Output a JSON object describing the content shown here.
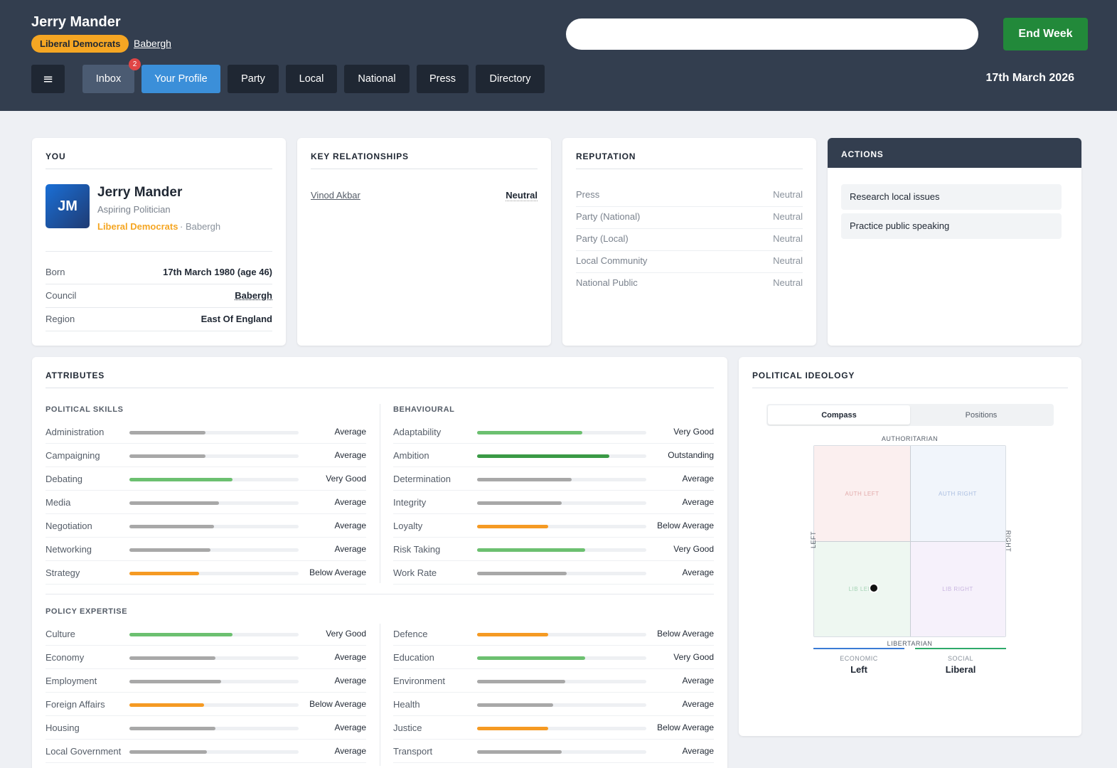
{
  "header": {
    "user_name": "Jerry Mander",
    "party": "Liberal Democrats",
    "council": "Babergh",
    "search_placeholder": "",
    "end_week_label": "End Week",
    "menu_glyph": "≡",
    "date": "17th March 2026",
    "nav": {
      "inbox": "Inbox",
      "inbox_count": "2",
      "profile": "Your Profile",
      "party": "Party",
      "local": "Local",
      "national": "National",
      "press": "Press",
      "directory": "Directory"
    }
  },
  "you": {
    "title": "YOU",
    "initials": "JM",
    "name": "Jerry Mander",
    "role": "Aspiring Politician",
    "party": "Liberal Democrats",
    "council_tag": "· Babergh",
    "rows": [
      {
        "label": "Born",
        "value": "17th March 1980 (age 46)"
      },
      {
        "label": "Council",
        "value": "Babergh"
      },
      {
        "label": "Region",
        "value": "East Of England"
      }
    ]
  },
  "relationships": {
    "title": "KEY RELATIONSHIPS",
    "items": [
      {
        "name": "Vinod Akbar",
        "status": "Neutral"
      }
    ]
  },
  "reputation": {
    "title": "REPUTATION",
    "rows": [
      {
        "label": "Press",
        "value": "Neutral"
      },
      {
        "label": "Party (National)",
        "value": "Neutral"
      },
      {
        "label": "Party (Local)",
        "value": "Neutral"
      },
      {
        "label": "Local Community",
        "value": "Neutral"
      },
      {
        "label": "National Public",
        "value": "Neutral"
      }
    ]
  },
  "actions": {
    "title": "ACTIONS",
    "items": [
      "Research local issues",
      "Practice public speaking"
    ]
  },
  "attributes": {
    "title": "ATTRIBUTES",
    "political_skills_label": "POLITICAL SKILLS",
    "behavioural_label": "BEHAVIOURAL",
    "policy_label": "POLICY EXPERTISE",
    "colors": {
      "Average": "#a8a8a8",
      "Very Good": "#6cc070",
      "Outstanding": "#3a9a45",
      "Below Average": "#f59a23"
    },
    "political_skills": [
      {
        "name": "Administration",
        "rating": "Average",
        "level": 0.45
      },
      {
        "name": "Campaigning",
        "rating": "Average",
        "level": 0.45
      },
      {
        "name": "Debating",
        "rating": "Very Good",
        "level": 0.61
      },
      {
        "name": "Media",
        "rating": "Average",
        "level": 0.53
      },
      {
        "name": "Negotiation",
        "rating": "Average",
        "level": 0.5
      },
      {
        "name": "Networking",
        "rating": "Average",
        "level": 0.48
      },
      {
        "name": "Strategy",
        "rating": "Below Average",
        "level": 0.41
      }
    ],
    "behavioural": [
      {
        "name": "Adaptability",
        "rating": "Very Good",
        "level": 0.62
      },
      {
        "name": "Ambition",
        "rating": "Outstanding",
        "level": 0.78
      },
      {
        "name": "Determination",
        "rating": "Average",
        "level": 0.56
      },
      {
        "name": "Integrity",
        "rating": "Average",
        "level": 0.5
      },
      {
        "name": "Loyalty",
        "rating": "Below Average",
        "level": 0.42
      },
      {
        "name": "Risk Taking",
        "rating": "Very Good",
        "level": 0.64
      },
      {
        "name": "Work Rate",
        "rating": "Average",
        "level": 0.53
      }
    ],
    "policy_left": [
      {
        "name": "Culture",
        "rating": "Very Good",
        "level": 0.61
      },
      {
        "name": "Economy",
        "rating": "Average",
        "level": 0.51
      },
      {
        "name": "Employment",
        "rating": "Average",
        "level": 0.54
      },
      {
        "name": "Foreign Affairs",
        "rating": "Below Average",
        "level": 0.44
      },
      {
        "name": "Housing",
        "rating": "Average",
        "level": 0.51
      },
      {
        "name": "Local Government",
        "rating": "Average",
        "level": 0.46
      }
    ],
    "policy_right": [
      {
        "name": "Defence",
        "rating": "Below Average",
        "level": 0.42
      },
      {
        "name": "Education",
        "rating": "Very Good",
        "level": 0.64
      },
      {
        "name": "Environment",
        "rating": "Average",
        "level": 0.52
      },
      {
        "name": "Health",
        "rating": "Average",
        "level": 0.45
      },
      {
        "name": "Justice",
        "rating": "Below Average",
        "level": 0.42
      },
      {
        "name": "Transport",
        "rating": "Average",
        "level": 0.5
      }
    ]
  },
  "ideology": {
    "title": "POLITICAL IDEOLOGY",
    "tabs": {
      "compass": "Compass",
      "positions": "Positions"
    },
    "axis": {
      "top": "AUTHORITARIAN",
      "bottom": "LIBERTARIAN",
      "left": "LEFT",
      "right": "RIGHT"
    },
    "quadrants": {
      "auth_left": "AUTH LEFT",
      "auth_right": "AUTH RIGHT",
      "lib_left": "LIB LEFT",
      "lib_right": "LIB RIGHT"
    },
    "position": {
      "economic": -0.38,
      "social": -0.49
    },
    "economic": {
      "caption": "ECONOMIC",
      "value": "Left",
      "color": "#3a7bd5"
    },
    "social": {
      "caption": "SOCIAL",
      "value": "Liberal",
      "color": "#2eaa6a"
    }
  }
}
